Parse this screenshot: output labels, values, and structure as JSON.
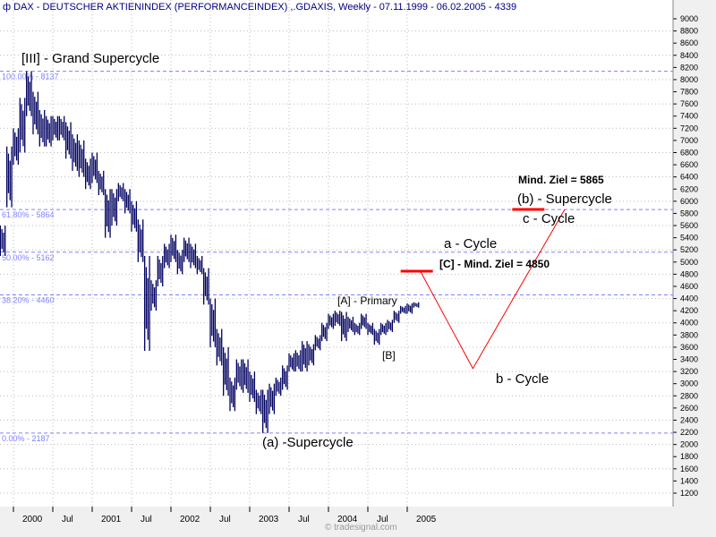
{
  "header": {
    "icon": "instrument-icon",
    "title": "DAX  - DEUTSCHER AKTIENINDEX (PERFORMANCEINDEX) ,.GDAXIS, Weekly - 07.11.1999 - 06.02.2005 - 4339"
  },
  "footer": {
    "credit": "© tradesignal.com"
  },
  "colors": {
    "bars": "#000060",
    "fib": "#8080ff",
    "projection": "#ff0000",
    "axis_text": "#000000"
  },
  "chart_data": {
    "type": "bar",
    "bar_style": "high-low",
    "ylim": [
      1200,
      9000
    ],
    "yticks": [
      1200,
      1400,
      1600,
      1800,
      2000,
      2200,
      2400,
      2600,
      2800,
      3000,
      3200,
      3400,
      3600,
      3800,
      4000,
      4200,
      4400,
      4600,
      4800,
      5000,
      5200,
      5400,
      5600,
      5800,
      6000,
      6200,
      6400,
      6600,
      6800,
      7000,
      7200,
      7400,
      7600,
      7800,
      8000,
      8200,
      8400,
      8600,
      8800,
      9000
    ],
    "xticks": [
      "2000",
      "Jul",
      "2001",
      "Jul",
      "2002",
      "Jul",
      "2003",
      "Jul",
      "2004",
      "Jul",
      "2005"
    ],
    "xtick_dates": [
      "2000-01",
      "2000-07",
      "2001-01",
      "2001-07",
      "2002-01",
      "2002-07",
      "2003-01",
      "2003-07",
      "2004-01",
      "2004-07",
      "2005-01"
    ],
    "grid": true,
    "series": [
      {
        "x": [
          "1999-11",
          "1999-12",
          "2000-01",
          "2000-02",
          "2000-03",
          "2000-04",
          "2000-05",
          "2000-06",
          "2000-07",
          "2000-08",
          "2000-09",
          "2000-10",
          "2000-11",
          "2000-12",
          "2001-01",
          "2001-02",
          "2001-03",
          "2001-04",
          "2001-05",
          "2001-06",
          "2001-07",
          "2001-08",
          "2001-09",
          "2001-10",
          "2001-11",
          "2001-12",
          "2002-01",
          "2002-02",
          "2002-03",
          "2002-04",
          "2002-05",
          "2002-06",
          "2002-07",
          "2002-08",
          "2002-09",
          "2002-10",
          "2002-11",
          "2002-12",
          "2003-01",
          "2003-02",
          "2003-03",
          "2003-04",
          "2003-05",
          "2003-06",
          "2003-07",
          "2003-08",
          "2003-09",
          "2003-10",
          "2003-11",
          "2003-12",
          "2004-01",
          "2004-02",
          "2004-03",
          "2004-04",
          "2004-05",
          "2004-06",
          "2004-07",
          "2004-08",
          "2004-09",
          "2004-10",
          "2004-11",
          "2004-12",
          "2005-01",
          "2005-02"
        ],
        "high": [
          5600,
          6900,
          7200,
          7700,
          8137,
          7800,
          7500,
          7400,
          7400,
          7400,
          7300,
          7100,
          7000,
          6700,
          6800,
          6500,
          6200,
          6200,
          6300,
          6200,
          6000,
          5700,
          5100,
          4700,
          5100,
          5300,
          5450,
          5200,
          5400,
          5300,
          5100,
          4900,
          4400,
          3900,
          3600,
          3100,
          3400,
          3400,
          3200,
          2900,
          2900,
          3000,
          3100,
          3300,
          3500,
          3550,
          3700,
          3650,
          3800,
          4000,
          4150,
          4200,
          4180,
          4100,
          4000,
          4150,
          4000,
          3900,
          4000,
          4050,
          4200,
          4280,
          4320,
          4339
        ],
        "low": [
          5100,
          5900,
          6600,
          6800,
          7400,
          7100,
          6900,
          6900,
          7000,
          7000,
          6700,
          6500,
          6400,
          6200,
          6300,
          6100,
          5400,
          5600,
          6000,
          5800,
          5500,
          5000,
          3540,
          4200,
          4600,
          4900,
          5000,
          4800,
          5000,
          4900,
          4800,
          4300,
          3600,
          3300,
          2800,
          2550,
          2900,
          2850,
          2700,
          2500,
          2188,
          2500,
          2800,
          2900,
          3200,
          3200,
          3200,
          3300,
          3550,
          3700,
          3900,
          3950,
          3700,
          3850,
          3800,
          3900,
          3800,
          3640,
          3800,
          3850,
          4000,
          4150,
          4150,
          4250
        ]
      }
    ],
    "fib_levels": [
      {
        "label": "100.00% - 8137",
        "value": 8137
      },
      {
        "label": "61.80% - 5864",
        "value": 5864
      },
      {
        "label": "50.00% - 5162",
        "value": 5162
      },
      {
        "label": "38.20% - 4460",
        "value": 4460
      },
      {
        "label": "0.00% - 2187",
        "value": 2187
      }
    ],
    "projection_path": [
      {
        "x": "2005-03",
        "y": 4850
      },
      {
        "x": "2005-11",
        "y": 3250
      },
      {
        "x": "2007-01",
        "y": 5865
      }
    ],
    "target_marks": [
      {
        "x": "2005-03",
        "y": 4850
      },
      {
        "x": "2006-08",
        "y": 5865
      }
    ],
    "annotations": [
      {
        "text": "[III] - Grand Supercycle",
        "x": "2000-03",
        "y": 8137
      },
      {
        "text": "(a) -Supercycle",
        "x": "2003-03",
        "y": 2187
      },
      {
        "text": "[A] - Primary",
        "x": "2004-01",
        "y": 4200
      },
      {
        "text": "[B]",
        "x": "2004-08",
        "y": 3640
      },
      {
        "text": "[C] - Mind. Ziel = 4850",
        "x": "2005-03",
        "y": 4850
      },
      {
        "text": "a - Cycle",
        "x": "2005-03",
        "y": 5400
      },
      {
        "text": "b - Cycle",
        "x": "2005-11",
        "y": 3250
      },
      {
        "text": "c - Cycle",
        "x": "2006-08",
        "y": 5865
      },
      {
        "text": "(b) - Supercycle",
        "x": "2006-08",
        "y": 5865
      },
      {
        "text": "Mind. Ziel =  5865",
        "x": "2006-08",
        "y": 6300
      }
    ]
  }
}
